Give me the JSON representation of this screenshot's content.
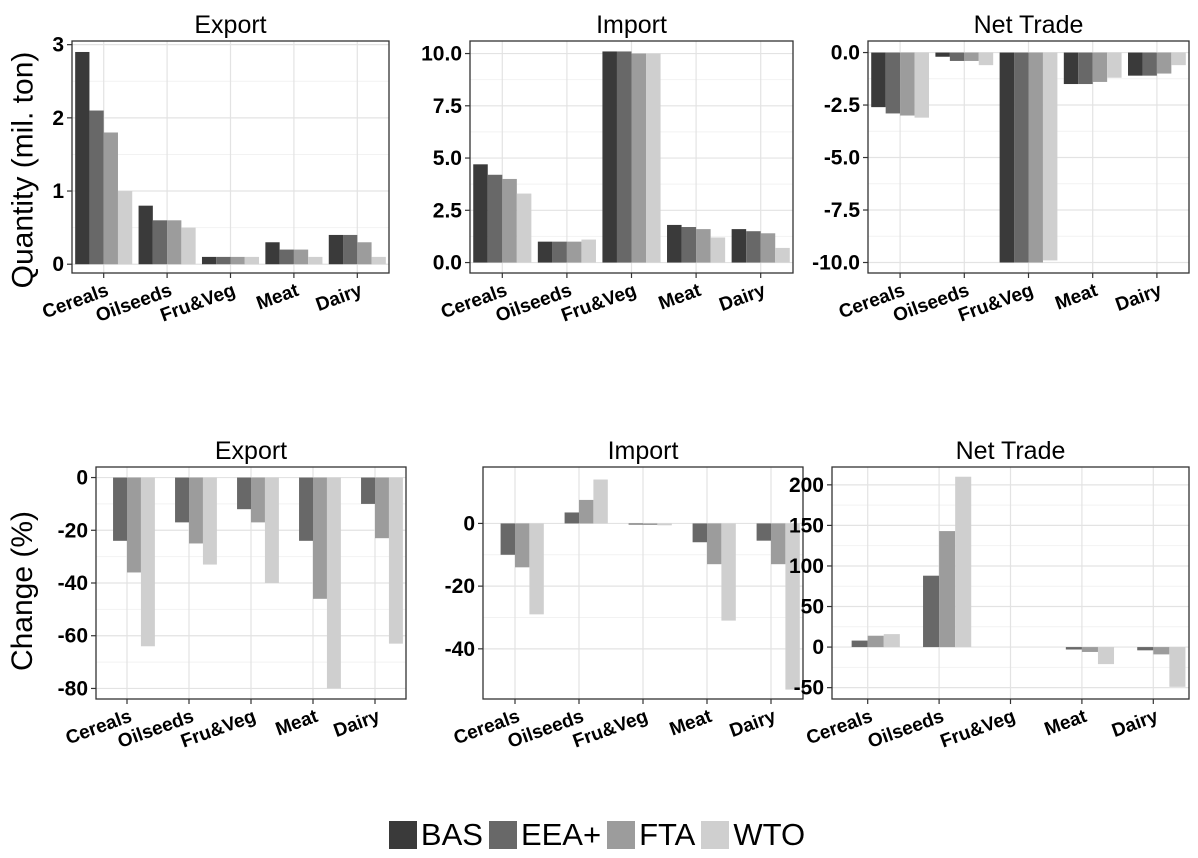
{
  "colors": {
    "BAS": "#3a3a3a",
    "EEA+": "#686868",
    "FTA": "#9c9c9c",
    "WTO": "#cfcfcf"
  },
  "row_labels": {
    "top": "Quantity (mil. ton)",
    "bottom": "Change (%)"
  },
  "legend": [
    "BAS",
    "EEA+",
    "FTA",
    "WTO"
  ],
  "chart_data": [
    {
      "type": "bar",
      "title": "Export",
      "ylim": [
        -0.12,
        3.05
      ],
      "yticks": [
        0,
        1,
        2,
        3
      ],
      "ytick_labels": [
        "0",
        "1",
        "2",
        "3"
      ],
      "categories": [
        "Cereals",
        "Oilseeds",
        "Fru&Veg",
        "Meat",
        "Dairy"
      ],
      "series": [
        {
          "name": "BAS",
          "values": [
            2.9,
            0.8,
            0.1,
            0.3,
            0.4
          ]
        },
        {
          "name": "EEA+",
          "values": [
            2.1,
            0.6,
            0.1,
            0.2,
            0.4
          ]
        },
        {
          "name": "FTA",
          "values": [
            1.8,
            0.6,
            0.1,
            0.2,
            0.3
          ]
        },
        {
          "name": "WTO",
          "values": [
            1.0,
            0.5,
            0.1,
            0.1,
            0.1
          ]
        }
      ]
    },
    {
      "type": "bar",
      "title": "Import",
      "ylim": [
        -0.5,
        10.6
      ],
      "yticks": [
        0,
        2.5,
        5,
        7.5,
        10
      ],
      "ytick_labels": [
        "0.0",
        "2.5",
        "5.0",
        "7.5",
        "10.0"
      ],
      "categories": [
        "Cereals",
        "Oilseeds",
        "Fru&Veg",
        "Meat",
        "Dairy"
      ],
      "series": [
        {
          "name": "BAS",
          "values": [
            4.7,
            1.0,
            10.1,
            1.8,
            1.6
          ]
        },
        {
          "name": "EEA+",
          "values": [
            4.2,
            1.0,
            10.1,
            1.7,
            1.5
          ]
        },
        {
          "name": "FTA",
          "values": [
            4.0,
            1.0,
            10.0,
            1.6,
            1.4
          ]
        },
        {
          "name": "WTO",
          "values": [
            3.3,
            1.1,
            10.0,
            1.2,
            0.7
          ]
        }
      ]
    },
    {
      "type": "bar",
      "title": "Net Trade",
      "ylim": [
        -10.5,
        0.55
      ],
      "yticks": [
        0,
        -2.5,
        -5,
        -7.5,
        -10
      ],
      "ytick_labels": [
        "0.0",
        "-2.5",
        "-5.0",
        "-7.5",
        "-10.0"
      ],
      "categories": [
        "Cereals",
        "Oilseeds",
        "Fru&Veg",
        "Meat",
        "Dairy"
      ],
      "series": [
        {
          "name": "BAS",
          "values": [
            -2.6,
            -0.2,
            -10.0,
            -1.5,
            -1.1
          ]
        },
        {
          "name": "EEA+",
          "values": [
            -2.9,
            -0.4,
            -10.0,
            -1.5,
            -1.1
          ]
        },
        {
          "name": "FTA",
          "values": [
            -3.0,
            -0.4,
            -10.0,
            -1.4,
            -1.0
          ]
        },
        {
          "name": "WTO",
          "values": [
            -3.1,
            -0.6,
            -9.9,
            -1.2,
            -0.6
          ]
        }
      ]
    },
    {
      "type": "bar",
      "title": "Export",
      "ylim": [
        -84,
        4
      ],
      "yticks": [
        0,
        -20,
        -40,
        -60,
        -80
      ],
      "ytick_labels": [
        "0",
        "-20",
        "-40",
        "-60",
        "-80"
      ],
      "categories": [
        "Cereals",
        "Oilseeds",
        "Fru&Veg",
        "Meat",
        "Dairy"
      ],
      "series": [
        {
          "name": "BAS",
          "values": [
            0,
            0,
            0,
            0,
            0
          ]
        },
        {
          "name": "EEA+",
          "values": [
            -24,
            -17,
            -12,
            -24,
            -10
          ]
        },
        {
          "name": "FTA",
          "values": [
            -36,
            -25,
            -17,
            -46,
            -23
          ]
        },
        {
          "name": "WTO",
          "values": [
            -64,
            -33,
            -40,
            -80,
            -63
          ]
        }
      ]
    },
    {
      "type": "bar",
      "title": "Import",
      "ylim": [
        -56,
        18
      ],
      "yticks": [
        0,
        -20,
        -40
      ],
      "ytick_labels": [
        "0",
        "-20",
        "-40"
      ],
      "categories": [
        "Cereals",
        "Oilseeds",
        "Fru&Veg",
        "Meat",
        "Dairy"
      ],
      "series": [
        {
          "name": "BAS",
          "values": [
            0,
            0,
            0,
            0,
            0
          ]
        },
        {
          "name": "EEA+",
          "values": [
            -10,
            3.5,
            -0.3,
            -6,
            -5.5
          ]
        },
        {
          "name": "FTA",
          "values": [
            -14,
            7.5,
            -0.5,
            -13,
            -13
          ]
        },
        {
          "name": "WTO",
          "values": [
            -29,
            14,
            -0.6,
            -31,
            -53
          ]
        }
      ]
    },
    {
      "type": "bar",
      "title": "Net Trade",
      "ylim": [
        -64,
        222
      ],
      "yticks": [
        200,
        150,
        100,
        50,
        0,
        -50
      ],
      "ytick_labels": [
        "200",
        "150",
        "100",
        "50",
        "0",
        "-50"
      ],
      "categories": [
        "Cereals",
        "Oilseeds",
        "Fru&Veg",
        "Meat",
        "Dairy"
      ],
      "series": [
        {
          "name": "BAS",
          "values": [
            0,
            0,
            0,
            0,
            0
          ]
        },
        {
          "name": "EEA+",
          "values": [
            8,
            88,
            0,
            -3,
            -4
          ]
        },
        {
          "name": "FTA",
          "values": [
            14,
            143,
            0,
            -6,
            -9
          ]
        },
        {
          "name": "WTO",
          "values": [
            16,
            210,
            0,
            -21,
            -49
          ]
        }
      ]
    }
  ]
}
